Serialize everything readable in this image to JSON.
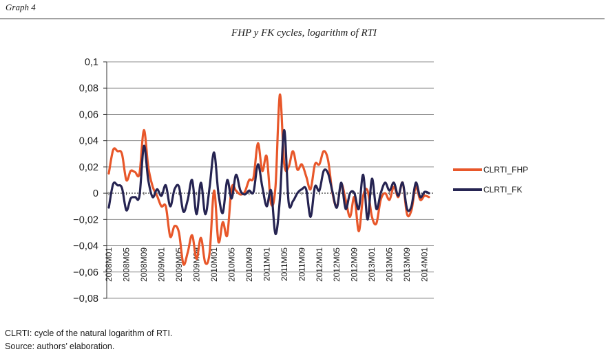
{
  "header": {
    "graph_label": "Graph 4"
  },
  "chart_data": {
    "type": "line",
    "title": "FHP y FK cycles, logarithm of RTI",
    "xlabel": "",
    "ylabel": "",
    "ylim": [
      -0.08,
      0.1
    ],
    "yticks": [
      0.1,
      0.08,
      0.06,
      0.04,
      0.02,
      0,
      -0.02,
      -0.04,
      -0.06,
      -0.08
    ],
    "ytick_labels": [
      "0,1",
      "0,08",
      "0,06",
      "0,04",
      "0,02",
      "0",
      "−0,02",
      "−0,04",
      "−0,06",
      "−0,08"
    ],
    "x_tick_labels": [
      "2008M01",
      "2008M05",
      "2008M09",
      "2009M01",
      "2009M05",
      "2009M09",
      "2010M01",
      "2010M05",
      "2010M09",
      "2011M01",
      "2011M05",
      "2011M09",
      "2012M01",
      "2012M05",
      "2012M09",
      "2013M01",
      "2013M05",
      "2013M09",
      "2014M01"
    ],
    "x_tick_every": 4,
    "n_points": 74,
    "grid": true,
    "legend_position": "right",
    "series": [
      {
        "name": "CLRTI_FHP",
        "color": "#e8572a",
        "values": [
          0.015,
          0.033,
          0.032,
          0.03,
          0.01,
          0.017,
          0.016,
          0.015,
          0.048,
          0.02,
          0.005,
          -0.002,
          -0.01,
          -0.01,
          -0.033,
          -0.025,
          -0.03,
          -0.054,
          -0.045,
          -0.032,
          -0.05,
          -0.034,
          -0.053,
          -0.045,
          0.002,
          -0.037,
          -0.022,
          -0.032,
          0.004,
          0.002,
          -0.001,
          0.001,
          0.01,
          0.012,
          0.038,
          0.017,
          0.028,
          -0.008,
          0.005,
          0.075,
          0.022,
          0.02,
          0.032,
          0.018,
          0.022,
          0.013,
          0.003,
          0.022,
          0.022,
          0.032,
          0.025,
          0.0,
          -0.01,
          0.007,
          -0.005,
          -0.018,
          -0.003,
          -0.029,
          -0.002,
          0.002,
          -0.018,
          -0.023,
          -0.005,
          0.0,
          -0.005,
          0.005,
          -0.003,
          0.008,
          -0.016,
          -0.013,
          0.005,
          -0.005,
          -0.002,
          -0.003
        ]
      },
      {
        "name": "CLRTI_FK",
        "color": "#262452",
        "values": [
          -0.011,
          0.007,
          0.006,
          0.004,
          -0.013,
          -0.004,
          -0.003,
          -0.002,
          0.036,
          0.01,
          -0.003,
          0.003,
          -0.002,
          0.006,
          -0.01,
          0.003,
          0.005,
          -0.014,
          -0.005,
          0.01,
          -0.016,
          0.008,
          -0.016,
          0.005,
          0.031,
          0.0,
          -0.015,
          0.01,
          -0.004,
          0.014,
          0.002,
          -0.001,
          0.002,
          0.001,
          0.022,
          0.005,
          -0.01,
          0.002,
          -0.031,
          -0.005,
          0.048,
          -0.007,
          -0.006,
          0.0,
          0.003,
          0.003,
          -0.018,
          0.005,
          0.002,
          0.017,
          0.015,
          0.001,
          -0.011,
          0.008,
          -0.012,
          0.0,
          0.0,
          -0.012,
          0.014,
          -0.02,
          0.011,
          -0.012,
          0.0,
          0.008,
          0.002,
          0.008,
          -0.002,
          0.008,
          -0.012,
          -0.01,
          0.008,
          -0.003,
          0.001,
          0.0
        ]
      }
    ]
  },
  "footnotes": {
    "note": "CLRTI: cycle of the natural logarithm of RTI.",
    "source": "Source: authors’ elaboration."
  }
}
